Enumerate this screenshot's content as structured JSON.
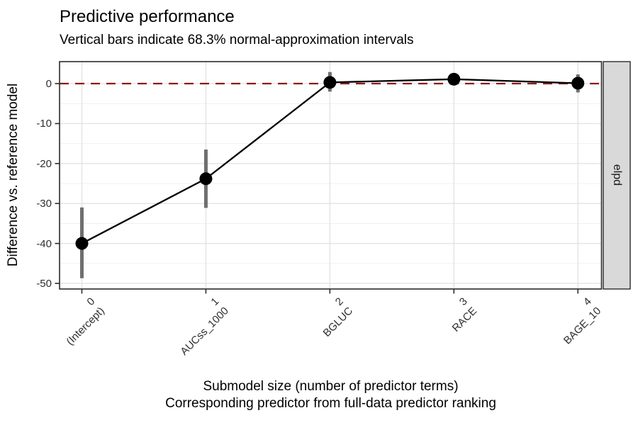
{
  "figure": {
    "title": "Predictive performance",
    "subtitle": "Vertical bars indicate 68.3% normal-approximation intervals",
    "y_axis_title": "Difference vs. reference model",
    "x_axis_title_line1": "Submodel size (number of predictor terms)",
    "x_axis_title_line2": "Corresponding predictor from full-data predictor ranking",
    "facet_strip_label": "elpd"
  },
  "chart_data": {
    "type": "line",
    "title": "Predictive performance",
    "subtitle": "Vertical bars indicate 68.3% normal-approximation intervals",
    "xlabel": "Submodel size (number of predictor terms) / Corresponding predictor from full-data predictor ranking",
    "ylabel": "Difference vs. reference model",
    "facet_label": "elpd",
    "legend_position": "none",
    "grid": "major-and-minor-horizontal, major-vertical",
    "x": [
      0,
      1,
      2,
      3,
      4
    ],
    "x_tick_labels": [
      {
        "size": "0",
        "predictor": "(Intercept)"
      },
      {
        "size": "1",
        "predictor": "AUCss_1000"
      },
      {
        "size": "2",
        "predictor": "BGLUC"
      },
      {
        "size": "3",
        "predictor": "RACE"
      },
      {
        "size": "4",
        "predictor": "BAGE_10"
      }
    ],
    "series": [
      {
        "name": "elpd difference vs. reference model",
        "estimate": [
          -40.0,
          -23.8,
          0.3,
          1.1,
          0.1
        ],
        "lower": [
          -48.7,
          -31.1,
          -2.0,
          -0.4,
          -2.2
        ],
        "upper": [
          -31.0,
          -16.5,
          2.9,
          2.6,
          2.3
        ],
        "interval": "68.3% normal-approximation interval"
      }
    ],
    "y_breaks": [
      0,
      -10,
      -20,
      -30,
      -40,
      -50
    ],
    "y_minor_breaks": [
      5,
      -5,
      -15,
      -25,
      -35,
      -45
    ],
    "y_tick_labels": [
      "0",
      "-10",
      "-20",
      "-30",
      "-40",
      "-50"
    ],
    "ylim": [
      -51.4,
      5.5
    ],
    "xlim": [
      -0.18,
      4.19
    ],
    "reference_line": {
      "y": 0,
      "style": "dashed"
    },
    "colors": {
      "reference_line": "#8B1A1A",
      "point": "#000000",
      "line": "#000000",
      "error_bar": "#6F6F6F",
      "strip_fill": "#D9D9D9",
      "panel_border": "#2B2B2B",
      "grid_major": "#E3E3E3",
      "grid_minor": "#F0F0F0",
      "tick_text": "#2E2E2E",
      "background": "#FFFFFF"
    }
  }
}
